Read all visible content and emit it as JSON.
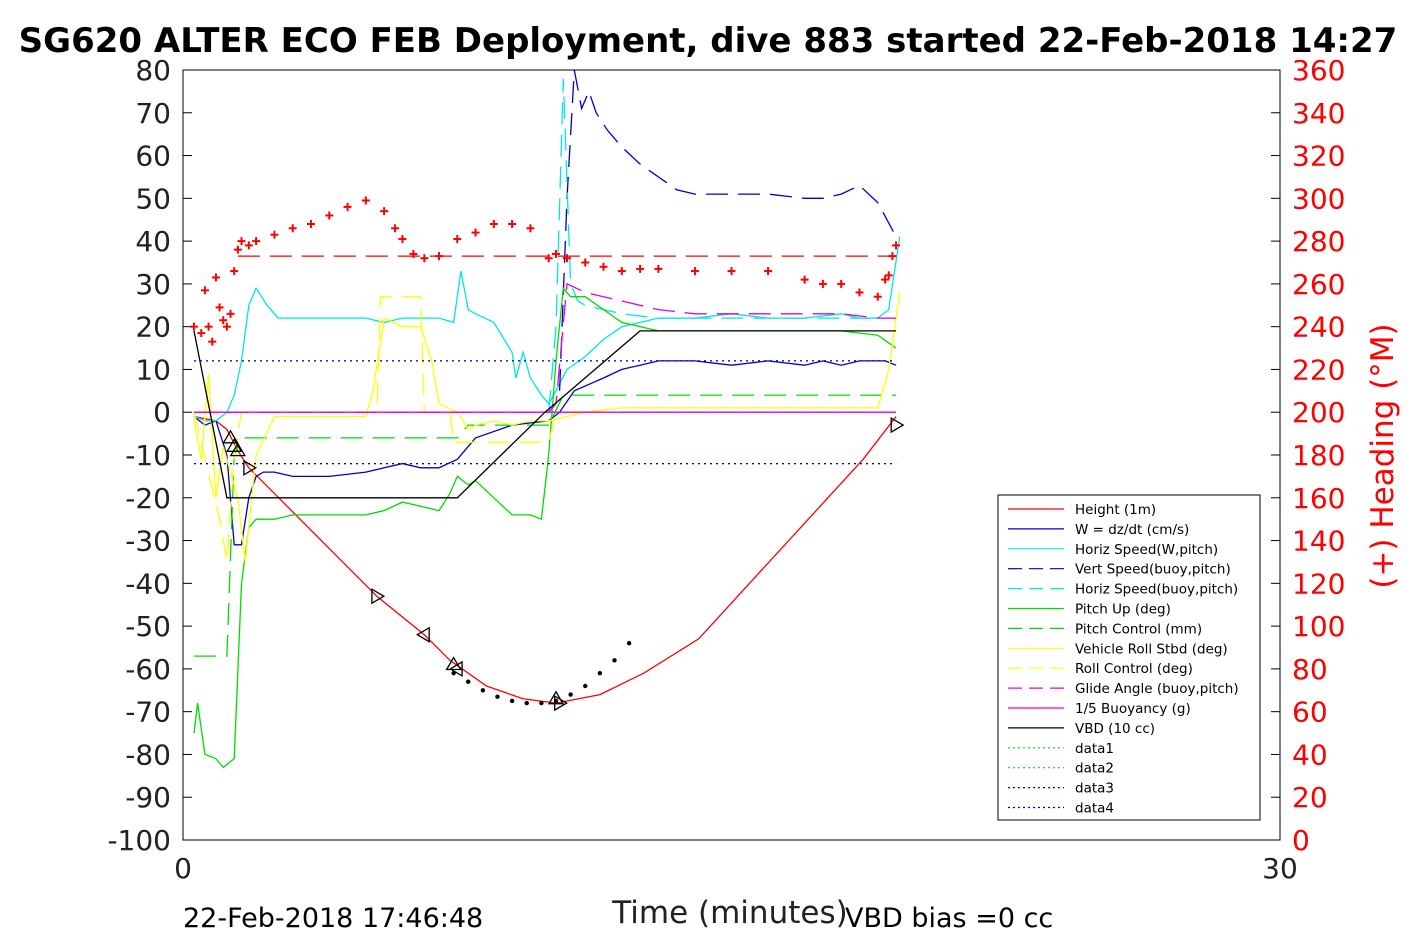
{
  "chart_data": {
    "type": "line",
    "title": "SG620 ALTER ECO FEB Deployment, dive 883 started 22-Feb-2018 14:27",
    "xlabel": "Time (minutes)",
    "ylabel_right": "(+) Heading (°M)",
    "xlim": [
      0,
      30
    ],
    "ylim_left": [
      -100,
      80
    ],
    "ylim_right": [
      0,
      360
    ],
    "x_ticks": [
      "0",
      "30"
    ],
    "y_ticks_left": [
      "80",
      "70",
      "60",
      "50",
      "40",
      "30",
      "20",
      "10",
      "0",
      "-10",
      "-20",
      "-30",
      "-40",
      "-50",
      "-60",
      "-70",
      "-80",
      "-90",
      "-100"
    ],
    "y_ticks_right": [
      "360",
      "340",
      "320",
      "300",
      "280",
      "260",
      "240",
      "220",
      "200",
      "180",
      "160",
      "140",
      "120",
      "100",
      "80",
      "60",
      "40",
      "20",
      "0"
    ],
    "footer_left": "22-Feb-2018 17:46:48",
    "footer_right": "VBD bias =0 cc",
    "grid": false,
    "legend_position": "lower-right inside",
    "colors": {
      "red": "#ff0000",
      "blue": "#0000cc",
      "cyan": "#00e6e6",
      "green": "#00dd00",
      "yellow": "#ffff00",
      "magenta": "#e600e6",
      "black": "#000000",
      "heading_axis": "#ff0000"
    },
    "legend": [
      {
        "label": "Height (1m)",
        "color": "#ff0000",
        "dash": "solid"
      },
      {
        "label": "W = dz/dt (cm/s)",
        "color": "#0000cc",
        "dash": "solid"
      },
      {
        "label": "Horiz Speed(W,pitch)",
        "color": "#00e6e6",
        "dash": "solid"
      },
      {
        "label": "Vert Speed(buoy,pitch)",
        "color": "#0000cc",
        "dash": "dashed"
      },
      {
        "label": "Horiz Speed(buoy,pitch)",
        "color": "#00e6e6",
        "dash": "dashed"
      },
      {
        "label": "Pitch Up (deg)",
        "color": "#00dd00",
        "dash": "solid"
      },
      {
        "label": "Pitch Control (mm)",
        "color": "#00dd00",
        "dash": "dashed"
      },
      {
        "label": "Vehicle Roll Stbd (deg)",
        "color": "#ffff00",
        "dash": "solid"
      },
      {
        "label": "Roll Control (deg)",
        "color": "#ffff00",
        "dash": "dashed"
      },
      {
        "label": "Glide Angle (buoy,pitch)",
        "color": "#e600e6",
        "dash": "dashed"
      },
      {
        "label": "1/5 Buoyancy (g)",
        "color": "#e600e6",
        "dash": "solid"
      },
      {
        "label": "VBD (10 cc)",
        "color": "#000000",
        "dash": "solid"
      },
      {
        "label": "data1",
        "color": "#00dd00",
        "dash": "dotted"
      },
      {
        "label": "data2",
        "color": "#00dd00",
        "dash": "dotted"
      },
      {
        "label": "data3",
        "color": "#0000cc",
        "dash": "dotted"
      },
      {
        "label": "data4",
        "color": "#0000cc",
        "dash": "dotted"
      }
    ],
    "series": [
      {
        "key": "height",
        "axis": "left",
        "color": "#ff0000",
        "dash": "solid",
        "x": [
          0.3,
          0.9,
          1.2,
          1.5,
          1.8,
          5.3,
          6.6,
          7.3,
          8.3,
          9.3,
          10.2,
          11.4,
          12.6,
          14.1,
          15.6,
          17.1,
          18.6,
          19.5
        ],
        "y": [
          -1,
          -2,
          -4,
          -9,
          -13,
          -43,
          -52,
          -58,
          -64,
          -67,
          -68,
          -66,
          -61,
          -53,
          -39,
          -25,
          -11,
          -1
        ]
      },
      {
        "key": "w",
        "axis": "left",
        "color": "#0000cc",
        "dash": "solid",
        "x": [
          0.3,
          0.6,
          0.9,
          1.2,
          1.4,
          1.6,
          1.8,
          2.0,
          2.2,
          2.5,
          3.0,
          4.0,
          5.0,
          5.5,
          6.0,
          6.5,
          7.0,
          7.5,
          8.0,
          9.0,
          10.0,
          10.3,
          10.7,
          11.5,
          12.0,
          12.5,
          13.0,
          14.0,
          15.0,
          16.0,
          17.0,
          17.5,
          18.0,
          18.5,
          19.2,
          19.5
        ],
        "y": [
          -1,
          -3,
          -2,
          -10,
          -31,
          -31,
          -20,
          -15,
          -14,
          -14,
          -15,
          -15,
          -14,
          -13,
          -12,
          -13,
          -13,
          -11,
          -6,
          -3,
          -2,
          0,
          5,
          8,
          10,
          11,
          12,
          12,
          11,
          12,
          11,
          12,
          11,
          12,
          12,
          11
        ]
      },
      {
        "key": "horiz_speed_w",
        "axis": "left",
        "color": "#00e6e6",
        "dash": "solid",
        "x": [
          0.3,
          0.6,
          0.9,
          1.2,
          1.4,
          1.6,
          1.8,
          2.0,
          2.3,
          2.6,
          3.0,
          4.0,
          5.0,
          5.5,
          6.0,
          6.5,
          7.0,
          7.4,
          7.6,
          7.8,
          8.0,
          8.5,
          9.0,
          9.1,
          9.3,
          9.5,
          9.8,
          10.0,
          10.2,
          10.5,
          11.0,
          11.5,
          12.0,
          13.0,
          14.0,
          15.0,
          16.0,
          17.0,
          18.0,
          18.5,
          19.0,
          19.3,
          19.6
        ],
        "y": [
          -1,
          -2,
          -2,
          0,
          4,
          12,
          25,
          29,
          25,
          22,
          22,
          22,
          22,
          21,
          22,
          22,
          22,
          21,
          33,
          24,
          23,
          21,
          14,
          8,
          14,
          8,
          4,
          2,
          5,
          10,
          13,
          17,
          20,
          22,
          22,
          23,
          22,
          22,
          23,
          22,
          22,
          24,
          41
        ]
      },
      {
        "key": "vert_speed_buoy",
        "axis": "left",
        "color": "#0000cc",
        "dash": "dashed",
        "x": [
          10.3,
          10.5,
          10.7,
          10.9,
          11.1,
          11.3,
          11.6,
          12.0,
          12.5,
          13.0,
          13.5,
          14.0,
          15.0,
          16.0,
          17.0,
          17.5,
          18.0,
          18.5,
          19.0,
          19.5
        ],
        "y": [
          5,
          50,
          80,
          71,
          75,
          70,
          66,
          62,
          58,
          55,
          52,
          51,
          51,
          51,
          50,
          50,
          51,
          53,
          49,
          41
        ]
      },
      {
        "key": "horiz_speed_buoy",
        "axis": "left",
        "color": "#00e6e6",
        "dash": "dashed",
        "x": [
          10.0,
          10.2,
          10.4,
          10.6,
          10.8,
          11.0,
          11.5,
          12.0,
          13.0,
          14.0,
          15.0,
          16.0,
          17.0,
          18.0,
          19.0,
          19.5
        ],
        "y": [
          0,
          20,
          78,
          30,
          26,
          25,
          24,
          23,
          22,
          22,
          22,
          22,
          22,
          22,
          22,
          22
        ]
      },
      {
        "key": "pitch_up",
        "axis": "left",
        "color": "#00dd00",
        "dash": "solid",
        "x": [
          0.3,
          0.4,
          0.6,
          0.9,
          1.1,
          1.4,
          1.6,
          1.8,
          2.0,
          2.5,
          3.0,
          4.0,
          5.0,
          5.5,
          6.0,
          6.5,
          7.0,
          7.3,
          7.5,
          7.8,
          8.0,
          8.5,
          9.0,
          9.5,
          9.8,
          10.0,
          10.2,
          10.4,
          10.6,
          11.0,
          11.5,
          12.0,
          13.0,
          14.0,
          15.0,
          16.0,
          17.0,
          18.0,
          19.0,
          19.5
        ],
        "y": [
          -75,
          -68,
          -80,
          -81,
          -83,
          -81,
          -40,
          -27,
          -25,
          -25,
          -24,
          -24,
          -24,
          -23,
          -21,
          -22,
          -23,
          -19,
          -15,
          -17,
          -16,
          -20,
          -24,
          -24,
          -25,
          -10,
          12,
          29,
          27,
          27,
          24,
          21,
          19,
          19,
          19,
          19,
          19,
          19,
          18,
          15
        ]
      },
      {
        "key": "pitch_control",
        "axis": "left",
        "color": "#00dd00",
        "dash": "dashed",
        "x": [
          0.3,
          1.2,
          1.4,
          1.6,
          2.0,
          7.5,
          7.8,
          10.0,
          10.4,
          19.5
        ],
        "y": [
          -57,
          -57,
          -10,
          -6,
          -6,
          -6,
          -3,
          -3,
          4,
          4
        ]
      },
      {
        "key": "vehicle_roll",
        "axis": "left",
        "color": "#ffff00",
        "dash": "solid",
        "x": [
          0.3,
          0.5,
          0.7,
          0.9,
          1.1,
          1.3,
          1.5,
          1.7,
          2.0,
          2.5,
          3.0,
          4.0,
          5.0,
          5.2,
          5.5,
          6.0,
          6.5,
          6.8,
          7.0,
          7.5,
          7.8,
          8.0,
          8.5,
          9.0,
          9.5,
          10.0,
          10.5,
          11.0,
          12.0,
          13.0,
          14.0,
          15.0,
          16.0,
          17.0,
          18.0,
          19.0,
          19.3,
          19.6
        ],
        "y": [
          -2,
          -11,
          9,
          -20,
          -8,
          -14,
          -20,
          -35,
          -10,
          -1,
          -1,
          -1,
          -1,
          5,
          22,
          20,
          20,
          12,
          2,
          0,
          -4,
          -3,
          -2,
          -3,
          -2,
          -2,
          -1,
          0,
          1,
          1,
          1,
          1,
          1,
          1,
          1,
          1,
          10,
          28
        ]
      },
      {
        "key": "roll_control",
        "axis": "left",
        "color": "#ffff00",
        "dash": "dashed",
        "x": [
          0.3,
          1.0,
          1.2,
          1.4,
          1.6,
          5.3,
          5.4,
          6.5,
          6.6,
          7.3,
          7.4,
          10.0,
          10.2,
          19.5
        ],
        "y": [
          0,
          -25,
          -35,
          -10,
          0,
          0,
          27,
          27,
          0,
          0,
          -7,
          -7,
          0,
          0
        ]
      },
      {
        "key": "glide_angle",
        "axis": "left",
        "color": "#e600e6",
        "dash": "dashed",
        "x": [
          0.3,
          10.0,
          10.2,
          10.5,
          11.0,
          12.0,
          13.0,
          14.0,
          15.0,
          16.0,
          17.0,
          18.0,
          19.0,
          19.5
        ],
        "y": [
          0,
          0,
          2,
          30,
          28,
          26,
          24,
          23,
          23,
          23,
          23,
          23,
          22,
          22
        ]
      },
      {
        "key": "buoyancy",
        "axis": "left",
        "color": "#e600e6",
        "dash": "solid",
        "x": [
          0.3,
          19.5
        ],
        "y": [
          0,
          0
        ]
      },
      {
        "key": "vbd",
        "axis": "left",
        "color": "#000000",
        "dash": "solid",
        "x": [
          0.3,
          1.2,
          7.5,
          9.9,
          12.5,
          19.5
        ],
        "y": [
          19,
          -20,
          -20,
          0,
          19,
          19
        ]
      },
      {
        "key": "data1",
        "axis": "left",
        "color": "#00dd00",
        "dash": "dotted",
        "x": [
          0.3,
          19.5
        ],
        "y": [
          12,
          12
        ]
      },
      {
        "key": "data2",
        "axis": "left",
        "color": "#00dd00",
        "dash": "dotted",
        "x": [
          0.3,
          19.5
        ],
        "y": [
          -12,
          -12
        ]
      },
      {
        "key": "data3",
        "axis": "left",
        "color": "#0000cc",
        "dash": "dotted",
        "x": [
          0.3,
          19.5
        ],
        "y": [
          12,
          12
        ]
      },
      {
        "key": "data4",
        "axis": "left",
        "color": "#0000cc",
        "dash": "dotted",
        "x": [
          0.3,
          19.5
        ],
        "y": [
          -12,
          -12
        ]
      },
      {
        "key": "heading_target",
        "axis": "right",
        "color": "#ff0000",
        "dash": "dashed",
        "x": [
          1.5,
          19.5
        ],
        "y": [
          273,
          273
        ]
      }
    ],
    "heading_points": {
      "axis": "right",
      "color": "#ff0000",
      "marker": "+",
      "x": [
        0.3,
        0.5,
        0.6,
        0.7,
        0.8,
        0.9,
        1.0,
        1.1,
        1.2,
        1.3,
        1.4,
        1.5,
        1.6,
        1.8,
        2.0,
        2.5,
        3.0,
        3.5,
        4.0,
        4.5,
        5.0,
        5.5,
        5.8,
        6.0,
        6.3,
        6.6,
        7.0,
        7.5,
        8.0,
        8.5,
        9.0,
        9.5,
        10.0,
        10.2,
        10.5,
        11.0,
        11.5,
        12.0,
        12.5,
        13.0,
        14.0,
        15.0,
        16.0,
        17.0,
        17.5,
        18.0,
        18.5,
        19.0,
        19.2,
        19.3,
        19.4,
        19.5
      ],
      "y": [
        240,
        237,
        257,
        240,
        233,
        263,
        249,
        243,
        240,
        246,
        266,
        276,
        280,
        278,
        280,
        283,
        286,
        288,
        292,
        296,
        299,
        294,
        286,
        281,
        274,
        272,
        273,
        281,
        284,
        288,
        288,
        286,
        272,
        274,
        272,
        270,
        268,
        266,
        267,
        267,
        266,
        266,
        266,
        262,
        260,
        260,
        256,
        254,
        262,
        264,
        273,
        278
      ]
    },
    "heading_cluster_dots": {
      "axis": "left",
      "color": "#000000",
      "x": [
        7.4,
        7.8,
        8.2,
        8.6,
        9.0,
        9.4,
        9.8,
        10.2,
        10.6,
        11.0,
        11.4,
        11.8,
        12.2
      ],
      "y": [
        -61,
        -63,
        -65,
        -66.5,
        -67.5,
        -68,
        -68,
        -67.5,
        -66,
        -64,
        -61,
        -58,
        -54
      ]
    },
    "triangle_markers": [
      {
        "x": 1.3,
        "y": -6,
        "dir": "up"
      },
      {
        "x": 1.4,
        "y": -8,
        "dir": "up"
      },
      {
        "x": 1.5,
        "y": -9,
        "dir": "up"
      },
      {
        "x": 1.8,
        "y": -13,
        "dir": "right"
      },
      {
        "x": 5.3,
        "y": -43,
        "dir": "right"
      },
      {
        "x": 6.6,
        "y": -52,
        "dir": "left"
      },
      {
        "x": 7.4,
        "y": -59,
        "dir": "up"
      },
      {
        "x": 7.5,
        "y": -60,
        "dir": "left"
      },
      {
        "x": 10.2,
        "y": -67,
        "dir": "up"
      },
      {
        "x": 10.3,
        "y": -68,
        "dir": "right"
      },
      {
        "x": 19.5,
        "y": -3,
        "dir": "right"
      }
    ]
  }
}
